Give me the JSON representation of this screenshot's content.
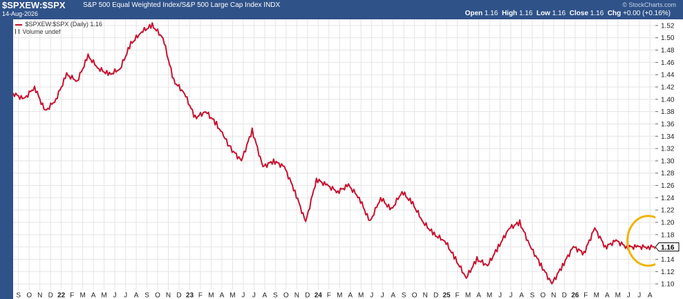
{
  "header": {
    "symbol": "$SPXEW:$SPX",
    "description": "S&P 500 Equal Weighted Index/S&P 500 Large Cap Index  INDX",
    "date": "14-Aug-2026",
    "brand": "© StockCharts.com",
    "open_label": "Open",
    "open": "1.16",
    "high_label": "High",
    "high": "1.16",
    "low_label": "Low",
    "low": "1.16",
    "close_label": "Close",
    "close": "1.16",
    "chg_label": "Chg",
    "chg": "+0.00 (+0.16%)"
  },
  "legend": {
    "series_label": "$SPXEW:$SPX (Daily) 1.16",
    "volume_label": "Volume undef"
  },
  "colors": {
    "line": "#c8102e",
    "highlight_circle": "#f0b400",
    "frame": "#2f5289",
    "grid": "#e4e4e4"
  },
  "chart_data": {
    "type": "line",
    "title": "$SPXEW:$SPX",
    "ylim": [
      1.09,
      1.53
    ],
    "y_ticks": [
      1.1,
      1.12,
      1.14,
      1.16,
      1.18,
      1.2,
      1.22,
      1.24,
      1.26,
      1.28,
      1.3,
      1.32,
      1.34,
      1.36,
      1.38,
      1.4,
      1.42,
      1.44,
      1.46,
      1.48,
      1.5,
      1.52
    ],
    "last_value_label": "1.16",
    "x_tick_labels": [
      "S",
      "O",
      "N",
      "D",
      "22",
      "F",
      "M",
      "A",
      "M",
      "J",
      "J",
      "A",
      "S",
      "O",
      "N",
      "D",
      "23",
      "F",
      "M",
      "A",
      "M",
      "J",
      "J",
      "A",
      "S",
      "O",
      "N",
      "D",
      "24",
      "F",
      "M",
      "A",
      "M",
      "J",
      "J",
      "A",
      "S",
      "O",
      "N",
      "D",
      "25",
      "F",
      "M",
      "A",
      "M",
      "J",
      "J",
      "A",
      "S",
      "O",
      "N",
      "D",
      "26",
      "F",
      "M",
      "A",
      "M",
      "J",
      "J",
      "A"
    ],
    "series": [
      {
        "name": "$SPXEW:$SPX (Daily)",
        "x_index": [
          0,
          3,
          6,
          9,
          12,
          15,
          18,
          21,
          24,
          27,
          30,
          33,
          36,
          39,
          42,
          45,
          48,
          51,
          54,
          57,
          59,
          61,
          64,
          67,
          70,
          73,
          76,
          79,
          82,
          85,
          88,
          91,
          94,
          97,
          100,
          103,
          106,
          109,
          112,
          115,
          118,
          121,
          124,
          127,
          130,
          133,
          136,
          139,
          142,
          145,
          148,
          151,
          154,
          157,
          160,
          163,
          166,
          169,
          172,
          175,
          178,
          180.5
        ],
        "values": [
          1.41,
          1.4,
          1.42,
          1.38,
          1.4,
          1.44,
          1.43,
          1.47,
          1.45,
          1.44,
          1.45,
          1.49,
          1.51,
          1.52,
          1.5,
          1.43,
          1.41,
          1.37,
          1.38,
          1.36,
          1.34,
          1.32,
          1.3,
          1.35,
          1.29,
          1.3,
          1.29,
          1.25,
          1.2,
          1.27,
          1.26,
          1.25,
          1.26,
          1.24,
          1.2,
          1.24,
          1.22,
          1.25,
          1.23,
          1.2,
          1.18,
          1.17,
          1.14,
          1.11,
          1.14,
          1.13,
          1.16,
          1.19,
          1.2,
          1.16,
          1.13,
          1.1,
          1.13,
          1.16,
          1.15,
          1.19,
          1.16,
          1.17,
          1.16,
          1.16,
          1.16,
          1.16
        ]
      }
    ],
    "highlight_circle": {
      "x_index": 178,
      "y_value": 1.17
    }
  }
}
